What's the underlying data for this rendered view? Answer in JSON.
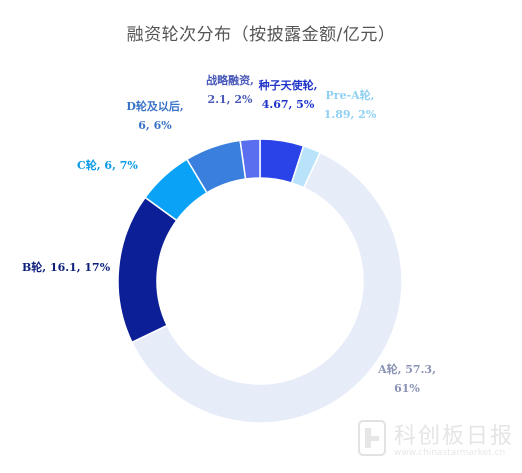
{
  "chart_data": {
    "type": "pie",
    "title": "融资轮次分布（按披露金额/亿元）",
    "slices": [
      {
        "name": "种子天使轮",
        "value": 4.67,
        "percent": 5,
        "color": "#2a43e8",
        "label_lines": [
          "种子天使轮,",
          "4.67, 5%"
        ]
      },
      {
        "name": "Pre-A轮",
        "value": 1.89,
        "percent": 2,
        "color": "#b8e3fb",
        "label_lines": [
          "Pre-A轮,",
          "1.89, 2%"
        ]
      },
      {
        "name": "A轮",
        "value": 57.3,
        "percent": 61,
        "color": "#e6edf9",
        "label_lines": [
          "A轮, 57.3,",
          "61%"
        ]
      },
      {
        "name": "B轮",
        "value": 16.1,
        "percent": 17,
        "color": "#0d1f96",
        "label_lines": [
          "B轮, 16.1, 17%"
        ]
      },
      {
        "name": "C轮",
        "value": 6,
        "percent": 7,
        "color": "#0aa2f7",
        "label_lines": [
          "C轮, 6, 7%"
        ]
      },
      {
        "name": "D轮及以后",
        "value": 6,
        "percent": 6,
        "color": "#3a7fdd",
        "label_lines": [
          "D轮及以后,",
          "6, 6%"
        ]
      },
      {
        "name": "战略融资",
        "value": 2.1,
        "percent": 2,
        "color": "#5a6ff0",
        "label_lines": [
          "战略融资,",
          "2.1, 2%"
        ]
      }
    ],
    "label_colors": {
      "种子天使轮": "#1f33c8",
      "Pre-A轮": "#8fd0f3",
      "A轮": "#8a93b3",
      "B轮": "#0d1f7a",
      "C轮": "#0a98e8",
      "D轮及以后": "#3a72c8",
      "战略融资": "#4a5ab8"
    },
    "legend": "none",
    "grid": false
  },
  "watermark": {
    "name": "科创板日报",
    "url": "www.chinastarmarket.cn"
  }
}
